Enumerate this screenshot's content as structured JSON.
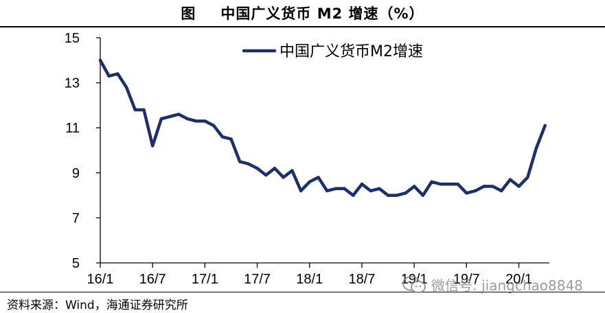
{
  "header": {
    "figure_label": "图",
    "title": "中国广义货币 M2 增速（%）"
  },
  "source": "资料来源：Wind，海通证券研究所",
  "watermark": {
    "text": "微信号: jiangchao8848",
    "icon": "wechat-icon"
  },
  "colors": {
    "line": "#1b2f6b",
    "axis": "#000000",
    "rule": "#000000"
  },
  "chart_data": {
    "type": "line",
    "title": "中国广义货币 M2 增速（%）",
    "xlabel": "",
    "ylabel": "",
    "ylim": [
      5,
      15
    ],
    "yticks": [
      5,
      7,
      9,
      11,
      13,
      15
    ],
    "grid": false,
    "legend": {
      "position": "top-right",
      "entries": [
        "中国广义货币M2增速"
      ]
    },
    "x_tick_labels": [
      "16/1",
      "16/7",
      "17/1",
      "17/7",
      "18/1",
      "18/7",
      "19/1",
      "19/7",
      "20/1"
    ],
    "x_tick_index": [
      0,
      6,
      12,
      18,
      24,
      30,
      36,
      42,
      48
    ],
    "series": [
      {
        "name": "中国广义货币M2增速",
        "x": [
          "16/01",
          "16/02",
          "16/03",
          "16/04",
          "16/05",
          "16/06",
          "16/07",
          "16/08",
          "16/09",
          "16/10",
          "16/11",
          "16/12",
          "17/01",
          "17/02",
          "17/03",
          "17/04",
          "17/05",
          "17/06",
          "17/07",
          "17/08",
          "17/09",
          "17/10",
          "17/11",
          "17/12",
          "18/01",
          "18/02",
          "18/03",
          "18/04",
          "18/05",
          "18/06",
          "18/07",
          "18/08",
          "18/09",
          "18/10",
          "18/11",
          "18/12",
          "19/01",
          "19/02",
          "19/03",
          "19/04",
          "19/05",
          "19/06",
          "19/07",
          "19/08",
          "19/09",
          "19/10",
          "19/11",
          "19/12",
          "20/01",
          "20/02",
          "20/03",
          "20/04"
        ],
        "values": [
          14.0,
          13.3,
          13.4,
          12.8,
          11.8,
          11.8,
          10.2,
          11.4,
          11.5,
          11.6,
          11.4,
          11.3,
          11.3,
          11.1,
          10.6,
          10.5,
          9.5,
          9.4,
          9.2,
          8.9,
          9.2,
          8.8,
          9.1,
          8.2,
          8.6,
          8.8,
          8.2,
          8.3,
          8.3,
          8.0,
          8.5,
          8.2,
          8.3,
          8.0,
          8.0,
          8.1,
          8.4,
          8.0,
          8.6,
          8.5,
          8.5,
          8.5,
          8.1,
          8.2,
          8.4,
          8.4,
          8.2,
          8.7,
          8.4,
          8.8,
          10.1,
          11.1
        ]
      }
    ]
  }
}
